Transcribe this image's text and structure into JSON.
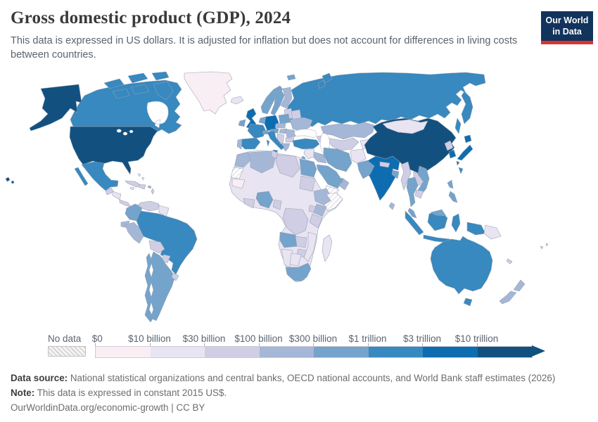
{
  "header": {
    "title": "Gross domestic product (GDP), 2024",
    "subtitle": "This data is expressed in US dollars. It is adjusted for inflation but does not account for differences in living costs between countries.",
    "logo": {
      "line1": "Our World",
      "line2": "in Data",
      "bg_color": "#12335c",
      "accent_color": "#d8352e"
    }
  },
  "legend": {
    "no_data_label": "No data",
    "tick_labels": [
      "$0",
      "$10 billion",
      "$30 billion",
      "$100 billion",
      "$300 billion",
      "$1 trillion",
      "$3 trillion",
      "$10 trillion"
    ],
    "bins": [
      {
        "id": "b0",
        "label": "$0–$10 billion",
        "color": "#faeef5"
      },
      {
        "id": "b10",
        "label": "$10–$30 billion",
        "color": "#e9e4f1"
      },
      {
        "id": "b30",
        "label": "$30–$100 billion",
        "color": "#cfcee4"
      },
      {
        "id": "b100",
        "label": "$100–$300 billion",
        "color": "#a5b7d7"
      },
      {
        "id": "b300",
        "label": "$300 billion–$1 trillion",
        "color": "#74a3cb"
      },
      {
        "id": "b1000",
        "label": "$1–$3 trillion",
        "color": "#3789bf"
      },
      {
        "id": "b3000",
        "label": "$3–$10 trillion",
        "color": "#0d6db0"
      },
      {
        "id": "b10000",
        "label": "$10+ trillion",
        "color": "#12517f"
      }
    ],
    "no_data_pattern": {
      "bg": "#f5f3f3",
      "line": "#d2cfcf",
      "border": "#c4c1c1",
      "map_line": "#d4cfd8"
    }
  },
  "footer": {
    "sources_label": "Data source:",
    "sources_text": " National statistical organizations and central banks, OECD national accounts, and World Bank staff estimates (2026)",
    "note_label": "Note:",
    "note_text": " This data is expressed in constant 2015 US$.",
    "url_text": "OurWorldinData.org/economic-growth",
    "separator": " | ",
    "license_text": "CC BY"
  },
  "chart_data": {
    "type": "choropleth",
    "title": "Gross domestic product (GDP)",
    "year": 2024,
    "unit": "constant 2015 US$",
    "bin_edges": [
      "$0",
      "$10 billion",
      "$30 billion",
      "$100 billion",
      "$300 billion",
      "$1 trillion",
      "$3 trillion",
      "$10 trillion"
    ],
    "countries": {
      "united-states": "b10000",
      "alaska": "b10000",
      "hawaii": "b10000",
      "canada": "b1000",
      "greenland": "b0",
      "mexico": "b1000",
      "guatemala": "b30",
      "honduras-nicaragua": "b10",
      "costa-rica-panama": "b30",
      "cuba": "b30",
      "hispaniola": "b30",
      "jamaica": "b10",
      "puerto-rico": "b100",
      "bahamas": "b10",
      "lesser-antilles": "b30",
      "colombia": "b300",
      "venezuela": "b30",
      "guyanas": "b10",
      "ecuador": "b100",
      "peru": "b100",
      "brazil": "b1000",
      "bolivia": "b30",
      "paraguay": "b30",
      "uruguay": "b30",
      "argentina": "b300",
      "chile": "b300",
      "iceland": "b10",
      "united-kingdom": "b3000",
      "ireland": "b300",
      "norway": "b300",
      "svalbard": "b300",
      "sweden": "b300",
      "finland": "b100",
      "denmark": "b300",
      "baltics": "b30",
      "belarus": "b30",
      "netherlands-belgium": "b300",
      "germany": "b3000",
      "poland": "b300",
      "czech-slovakia": "b100",
      "france": "b1000",
      "spain": "b1000",
      "portugal": "b100",
      "italy": "b1000",
      "switzerland": "b300",
      "austria": "b300",
      "hungary": "b100",
      "romania": "b100",
      "balkans": "b30",
      "bulgaria": "b30",
      "greece": "b100",
      "ukraine": "b100",
      "russia": "b1000",
      "kazakhstan": "b100",
      "uzbekistan-turkmenistan": "b30",
      "kyrgyzstan-tajikistan": "b10",
      "caucasus": "b30",
      "turkey": "b1000",
      "cyprus": "b30",
      "syria-levant": "b10",
      "israel": "b300",
      "iraq": "b100",
      "iran": "b300",
      "afghanistan": "b10",
      "pakistan": "b300",
      "saudi-arabia": "b300",
      "yemen": "no-data",
      "oman": "b100",
      "uae-qatar": "b300",
      "africa-other": "b10",
      "morocco": "b100",
      "western-sahara": "no-data",
      "algeria": "b100",
      "tunisia": "b30",
      "libya": "b30",
      "egypt": "b300",
      "mauritania": "b0",
      "nigeria": "b300",
      "ghana-ivory-coast": "b30",
      "cameroon": "b30",
      "sudan": "b30",
      "ethiopia": "b100",
      "somalia": "no-data",
      "kenya": "b100",
      "uganda": "b30",
      "tanzania": "b30",
      "dr-congo": "b30",
      "angola": "b300",
      "zambia": "b30",
      "zimbabwe": "b30",
      "mozambique": "b10",
      "namibia": "b10",
      "botswana": "b10",
      "south-africa": "b300",
      "madagascar": "b10",
      "india": "b3000",
      "nepal": "b30",
      "bangladesh": "b300",
      "sri-lanka": "b100",
      "myanmar": "b30",
      "thailand": "b300",
      "laos": "b30",
      "vietnam": "b300",
      "cambodia": "b30",
      "malaysia": "b300",
      "indonesia": "b1000",
      "papua-new-guinea": "b10",
      "philippines": "b300",
      "taiwan": "b1000",
      "china": "b10000",
      "mongolia": "b10",
      "north-korea": "b30",
      "south-korea": "b3000",
      "japan": "b3000",
      "australia": "b1000",
      "new-zealand": "b100",
      "fiji": "b30",
      "new-caledonia": "b30"
    }
  }
}
